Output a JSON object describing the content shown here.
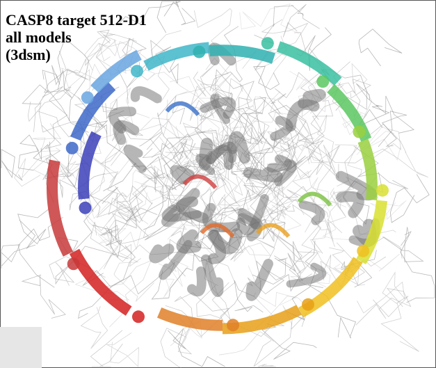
{
  "label": {
    "lines": [
      "CASP8 target 512-D1",
      "all models",
      "(3dsm)"
    ]
  }
}
